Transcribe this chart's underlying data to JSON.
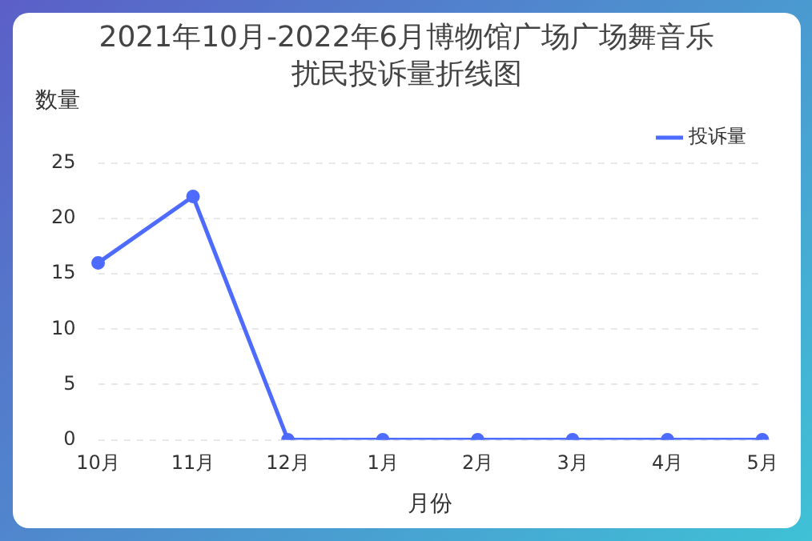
{
  "chart_data": {
    "type": "line",
    "title": "2021年10月-2022年6月博物馆广场广场舞音乐扰民投诉量折线图",
    "xlabel": "月份",
    "ylabel": "数量",
    "categories": [
      "10月",
      "11月",
      "12月",
      "1月",
      "2月",
      "3月",
      "4月",
      "5月"
    ],
    "series": [
      {
        "name": "投诉量",
        "color": "#4d6bfe",
        "values": [
          16,
          22,
          0,
          0,
          0,
          0,
          0,
          0
        ]
      }
    ],
    "ylim": [
      0,
      25
    ],
    "yticks": [
      0,
      5,
      10,
      15,
      20,
      25
    ],
    "grid": "y",
    "legend": "top right",
    "marker": "circle",
    "line_style": "solid"
  }
}
